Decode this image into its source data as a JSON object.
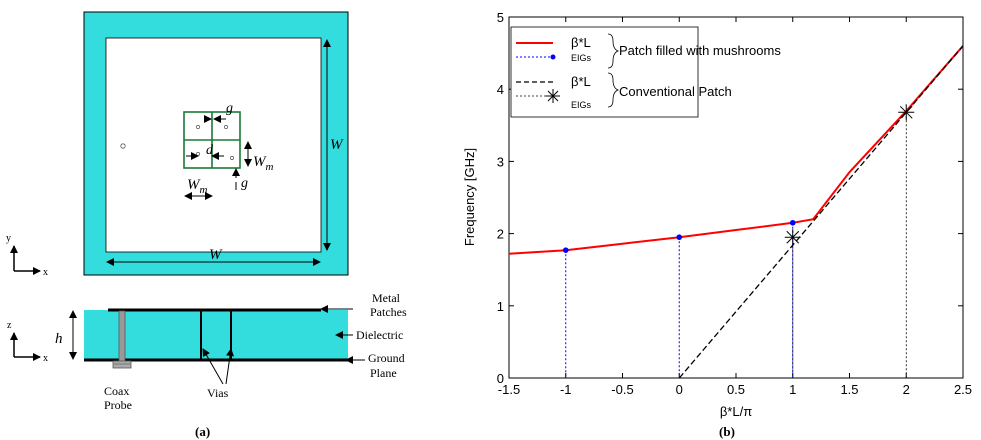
{
  "panel_a": {
    "top_view": {
      "dim_W_bottom": "W",
      "dim_W_right": "W",
      "dim_g_top": "g",
      "dim_d": "d",
      "dim_Wm_right": "W",
      "dim_Wm_right_sub": "m",
      "dim_Wm_bottom": "W",
      "dim_Wm_bottom_sub": "m",
      "dim_g_bottom": "g",
      "axis_y": "y",
      "axis_x": "x"
    },
    "side_view": {
      "dim_h": "h",
      "axis_z": "z",
      "axis_x": "x",
      "label_metal": "Metal",
      "label_patches": "Patches",
      "label_dielectric": "Dielectric",
      "label_ground": "Ground",
      "label_plane": "Plane",
      "label_vias": "Vias",
      "label_coax": "Coax",
      "label_probe": "Probe"
    },
    "caption": "(a)"
  },
  "panel_b": {
    "caption": "(b)",
    "colors": {
      "red": "#ff0000",
      "blue": "#0000ff",
      "black": "#000000"
    },
    "legend": {
      "entry1_label": "β*L",
      "entry1b_label": "EIGs",
      "group1_label": "Patch filled with mushrooms",
      "entry2_label": "β*L",
      "entry2b_label": "EIGs",
      "group2_label": "Conventional Patch"
    },
    "chart_data": {
      "type": "line",
      "xlabel": "β*L/π",
      "ylabel": "Frequency [GHz]",
      "xlim": [
        -1.5,
        2.5
      ],
      "ylim": [
        0,
        5
      ],
      "xticks": [
        "-1.5",
        "-1",
        "-0.5",
        "0",
        "0.5",
        "1",
        "1.5",
        "2",
        "2.5"
      ],
      "yticks": [
        "0",
        "1",
        "2",
        "3",
        "4",
        "5"
      ],
      "legend_position": "top-left",
      "series": [
        {
          "name": "β*L",
          "style": "red-solid",
          "x": [
            -1.5,
            -1.0,
            -0.5,
            0.0,
            0.5,
            1.0,
            1.18,
            1.5,
            2.0,
            2.5
          ],
          "y": [
            1.72,
            1.77,
            1.86,
            1.95,
            2.05,
            2.15,
            2.2,
            2.85,
            3.7,
            4.6
          ]
        },
        {
          "name": "EIGs",
          "style": "blue-dots",
          "x": [
            -1.0,
            0.0,
            1.0
          ],
          "y": [
            1.77,
            1.95,
            2.15
          ]
        },
        {
          "name": "β*L",
          "style": "black-dashed",
          "x": [
            0.0,
            2.5
          ],
          "y": [
            0.0,
            4.6
          ]
        },
        {
          "name": "EIGs",
          "style": "black-asterisk",
          "x": [
            1.0,
            2.0
          ],
          "y": [
            1.95,
            3.68
          ]
        }
      ]
    }
  }
}
